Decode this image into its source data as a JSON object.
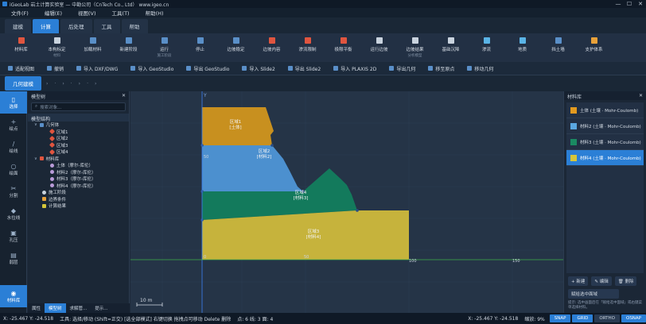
{
  "window": {
    "title": "iGeoLab 岩土计算实验室 — 中勘公司（CnTech Co., Ltd）  www.igeo.cn",
    "min": "—",
    "max": "☐",
    "close": "✕"
  },
  "menu": [
    "文件(F)",
    "编辑(E)",
    "视图(V)",
    "工具(T)",
    "帮助(H)"
  ],
  "tabs": [
    {
      "label": "建模",
      "active": false
    },
    {
      "label": "计算",
      "active": true
    },
    {
      "label": "后处理",
      "active": false
    },
    {
      "label": "工具",
      "active": false
    },
    {
      "label": "帮助",
      "active": false
    }
  ],
  "ribbon": [
    {
      "label": "材料库",
      "group": "",
      "color": "#e0553f"
    },
    {
      "label": "本构标定",
      "group": "材料",
      "color": "#c9d3de"
    },
    {
      "label": "加载材料",
      "group": "",
      "color": "#5a8fc8"
    },
    {
      "label": "新建阶段",
      "group": "",
      "color": "#5a8fc8"
    },
    {
      "label": "运行",
      "group": "施工阶段",
      "color": "#5a8fc8"
    },
    {
      "label": "停止",
      "group": "",
      "color": "#5a8fc8"
    },
    {
      "label": "边坡稳定",
      "group": "",
      "color": "#5a8fc8"
    },
    {
      "label": "边坡内容",
      "group": "",
      "color": "#e0553f"
    },
    {
      "label": "渗流限制",
      "group": "",
      "color": "#e0553f"
    },
    {
      "label": "极限平衡",
      "group": "",
      "color": "#e0553f"
    },
    {
      "label": "运行边坡",
      "group": "",
      "color": "#c9d3de"
    },
    {
      "label": "边坡结果",
      "group": "分析模型",
      "color": "#c9d3de"
    },
    {
      "label": "基础沉降",
      "group": "",
      "color": "#c9d3de"
    },
    {
      "label": "渗流",
      "group": "",
      "color": "#5ab4e6"
    },
    {
      "label": "地质",
      "group": "",
      "color": "#5ab4e6"
    },
    {
      "label": "挡土墙",
      "group": "",
      "color": "#5a8fc8"
    },
    {
      "label": "支护体系",
      "group": "",
      "color": "#e8a13a"
    }
  ],
  "toolrow": [
    "适配视图",
    "撤销",
    "导入 DXF/DWG",
    "导入 GeoStudio",
    "导出 GeoStudio",
    "导入 Slide2",
    "导出 Slide2",
    "导入 PLAXIS 2D",
    "导出几何",
    "移至原点",
    "移动几何"
  ],
  "mode": {
    "active": "几何建模",
    "steps": [
      "›",
      "·",
      "›",
      "·",
      "›",
      "·",
      "›"
    ]
  },
  "leftbar": [
    {
      "label": "选择",
      "glyph": "▯",
      "icon": "select-icon",
      "active": true
    },
    {
      "label": "绘点",
      "glyph": "+",
      "icon": "point-icon",
      "active": false
    },
    {
      "label": "绘线",
      "glyph": "/",
      "icon": "line-icon",
      "active": false
    },
    {
      "label": "绘面",
      "glyph": "○",
      "icon": "surface-icon",
      "active": false
    },
    {
      "label": "分割",
      "glyph": "✂",
      "icon": "split-icon",
      "active": false
    },
    {
      "label": "水位线",
      "glyph": "◆",
      "icon": "water-line-icon",
      "active": false
    },
    {
      "label": "孔压",
      "glyph": "▣",
      "icon": "pore-pressure-icon",
      "active": false
    },
    {
      "label": "弱层",
      "glyph": "▤",
      "icon": "weak-layer-icon",
      "active": false
    },
    {
      "label": "材料库",
      "glyph": "◉",
      "icon": "material-library-icon",
      "active": true
    }
  ],
  "tree": {
    "title": "模型树",
    "close": "✕",
    "search_placeholder": "搜索对象...",
    "section": "模型结构",
    "geometry": "几何体",
    "regions": [
      "区域1",
      "区域2",
      "区域3",
      "区域4"
    ],
    "materials_label": "材料库",
    "materials": [
      "土体（摩尔-库伦）",
      "材料2（摩尔-库伦）",
      "材料3（摩尔-库伦）",
      "材料4（摩尔-库伦）"
    ],
    "stage": "施工阶段",
    "bc": "边界条件",
    "results": "计算结果",
    "tabs": [
      "属性",
      "模型树",
      "求解管...",
      "提示..."
    ]
  },
  "canvas": {
    "axis_label": "Y",
    "x_ticks": [
      "0",
      "50",
      "100",
      "150"
    ],
    "y_ticks": [
      "50"
    ],
    "scale": "10 m",
    "regions": [
      {
        "name": "区域1",
        "material": "[土体]",
        "color": "#c8901f"
      },
      {
        "name": "区域2",
        "material": "[材料2]",
        "color": "#4c90cf"
      },
      {
        "name": "区域4",
        "material": "[材料3]",
        "color": "#137a5c"
      },
      {
        "name": "区域3",
        "material": "[材料4]",
        "color": "#c6b33c"
      }
    ]
  },
  "matpanel": {
    "title": "材料库",
    "close": "✕",
    "items": [
      {
        "label": "土体    (土壤 · Mohr-Coulomb)",
        "color": "#e39a1f",
        "selected": false
      },
      {
        "label": "材料2    (土壤 · Mohr-Coulomb)",
        "color": "#5aa7e0",
        "selected": false
      },
      {
        "label": "材料3    (土壤 · Mohr-Coulomb)",
        "color": "#1a8a62",
        "selected": false
      },
      {
        "label": "材料4    (土壤 · Mohr-Coulomb)",
        "color": "#d6c63a",
        "selected": true
      }
    ],
    "actions": [
      "+ 新建",
      "✎ 编辑",
      "🗑 删除"
    ],
    "assign": "赋给选中面域",
    "hint": "提示: 选中画面后在「赋给选中面域」或右键菜单选择材料。"
  },
  "status": {
    "left_coords": "X: -25.467   Y: -24.518",
    "tool_hint": "工具: 选择/移动 (Shift=正交) [选全部模式] 右键切换 拖拽点可移动 Delete 删除",
    "counts": "点: 6   线: 3   面: 4",
    "right_coords": "X: -25.467   Y: -24.518",
    "zoom": "缩放: 9%",
    "flags": [
      {
        "label": "SNAP",
        "on": true
      },
      {
        "label": "GRID",
        "on": true
      },
      {
        "label": "ORTHO",
        "on": false
      },
      {
        "label": "OSNAP",
        "on": true
      }
    ]
  }
}
